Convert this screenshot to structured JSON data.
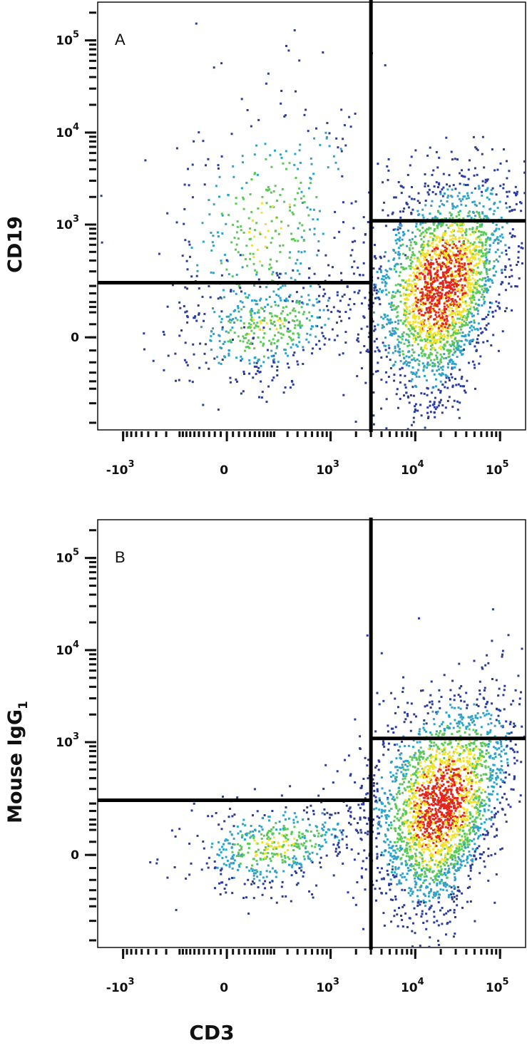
{
  "chart_data": [
    {
      "type": "scatter",
      "panel_label": "A",
      "xlabel": "",
      "ylabel": "CD19",
      "x_scale": "biexponential",
      "y_scale": "biexponential",
      "x_tick_labels": [
        {
          "value": -1000,
          "base": "-10",
          "exp": "3"
        },
        {
          "value": 0,
          "base": "0",
          "exp": ""
        },
        {
          "value": 1000,
          "base": "10",
          "exp": "3"
        },
        {
          "value": 10000,
          "base": "10",
          "exp": "4"
        },
        {
          "value": 100000,
          "base": "10",
          "exp": "5"
        }
      ],
      "y_tick_labels": [
        {
          "value": 0,
          "base": "0",
          "exp": ""
        },
        {
          "value": 1000,
          "base": "10",
          "exp": "3"
        },
        {
          "value": 10000,
          "base": "10",
          "exp": "4"
        },
        {
          "value": 100000,
          "base": "10",
          "exp": "5"
        }
      ],
      "quadrant_gates": {
        "x_split": 3000,
        "y_split_left": 220,
        "y_split_right": 1100
      },
      "populations": [
        {
          "x_center": 150,
          "y_center": 1000,
          "x_spread": 0.11,
          "y_spread": 0.15,
          "points": 420
        },
        {
          "x_center": 150,
          "y_center": 30,
          "x_spread": 0.1,
          "y_spread": 0.06,
          "points": 420
        },
        {
          "x_center": 20000,
          "y_center": 200,
          "x_spread": 0.08,
          "y_spread": 0.12,
          "points": 2600
        }
      ],
      "grid": false,
      "density_coloring": true
    },
    {
      "type": "scatter",
      "panel_label": "B",
      "xlabel": "CD3",
      "ylabel": "Mouse IgG",
      "ylabel_subscript": "1",
      "x_scale": "biexponential",
      "y_scale": "biexponential",
      "x_tick_labels": [
        {
          "value": -1000,
          "base": "-10",
          "exp": "3"
        },
        {
          "value": 0,
          "base": "0",
          "exp": ""
        },
        {
          "value": 1000,
          "base": "10",
          "exp": "3"
        },
        {
          "value": 10000,
          "base": "10",
          "exp": "4"
        },
        {
          "value": 100000,
          "base": "10",
          "exp": "5"
        }
      ],
      "y_tick_labels": [
        {
          "value": 0,
          "base": "0",
          "exp": ""
        },
        {
          "value": 1000,
          "base": "10",
          "exp": "3"
        },
        {
          "value": 10000,
          "base": "10",
          "exp": "4"
        },
        {
          "value": 100000,
          "base": "10",
          "exp": "5"
        }
      ],
      "quadrant_gates": {
        "x_split": 3000,
        "y_split_left": 220,
        "y_split_right": 1100
      },
      "populations": [
        {
          "x_center": 200,
          "y_center": 30,
          "x_spread": 0.1,
          "y_spread": 0.05,
          "points": 520
        },
        {
          "x_center": 20000,
          "y_center": 200,
          "x_spread": 0.08,
          "y_spread": 0.12,
          "points": 2600
        }
      ],
      "grid": false,
      "density_coloring": true
    }
  ],
  "colors": {
    "axis": "#111111",
    "gate": "#000000",
    "density_low": "#2b3c9c",
    "density_mid": "#2fa2c8",
    "density_green": "#5cc85a",
    "density_high": "#f2e32a",
    "density_peak": "#e2261d"
  }
}
